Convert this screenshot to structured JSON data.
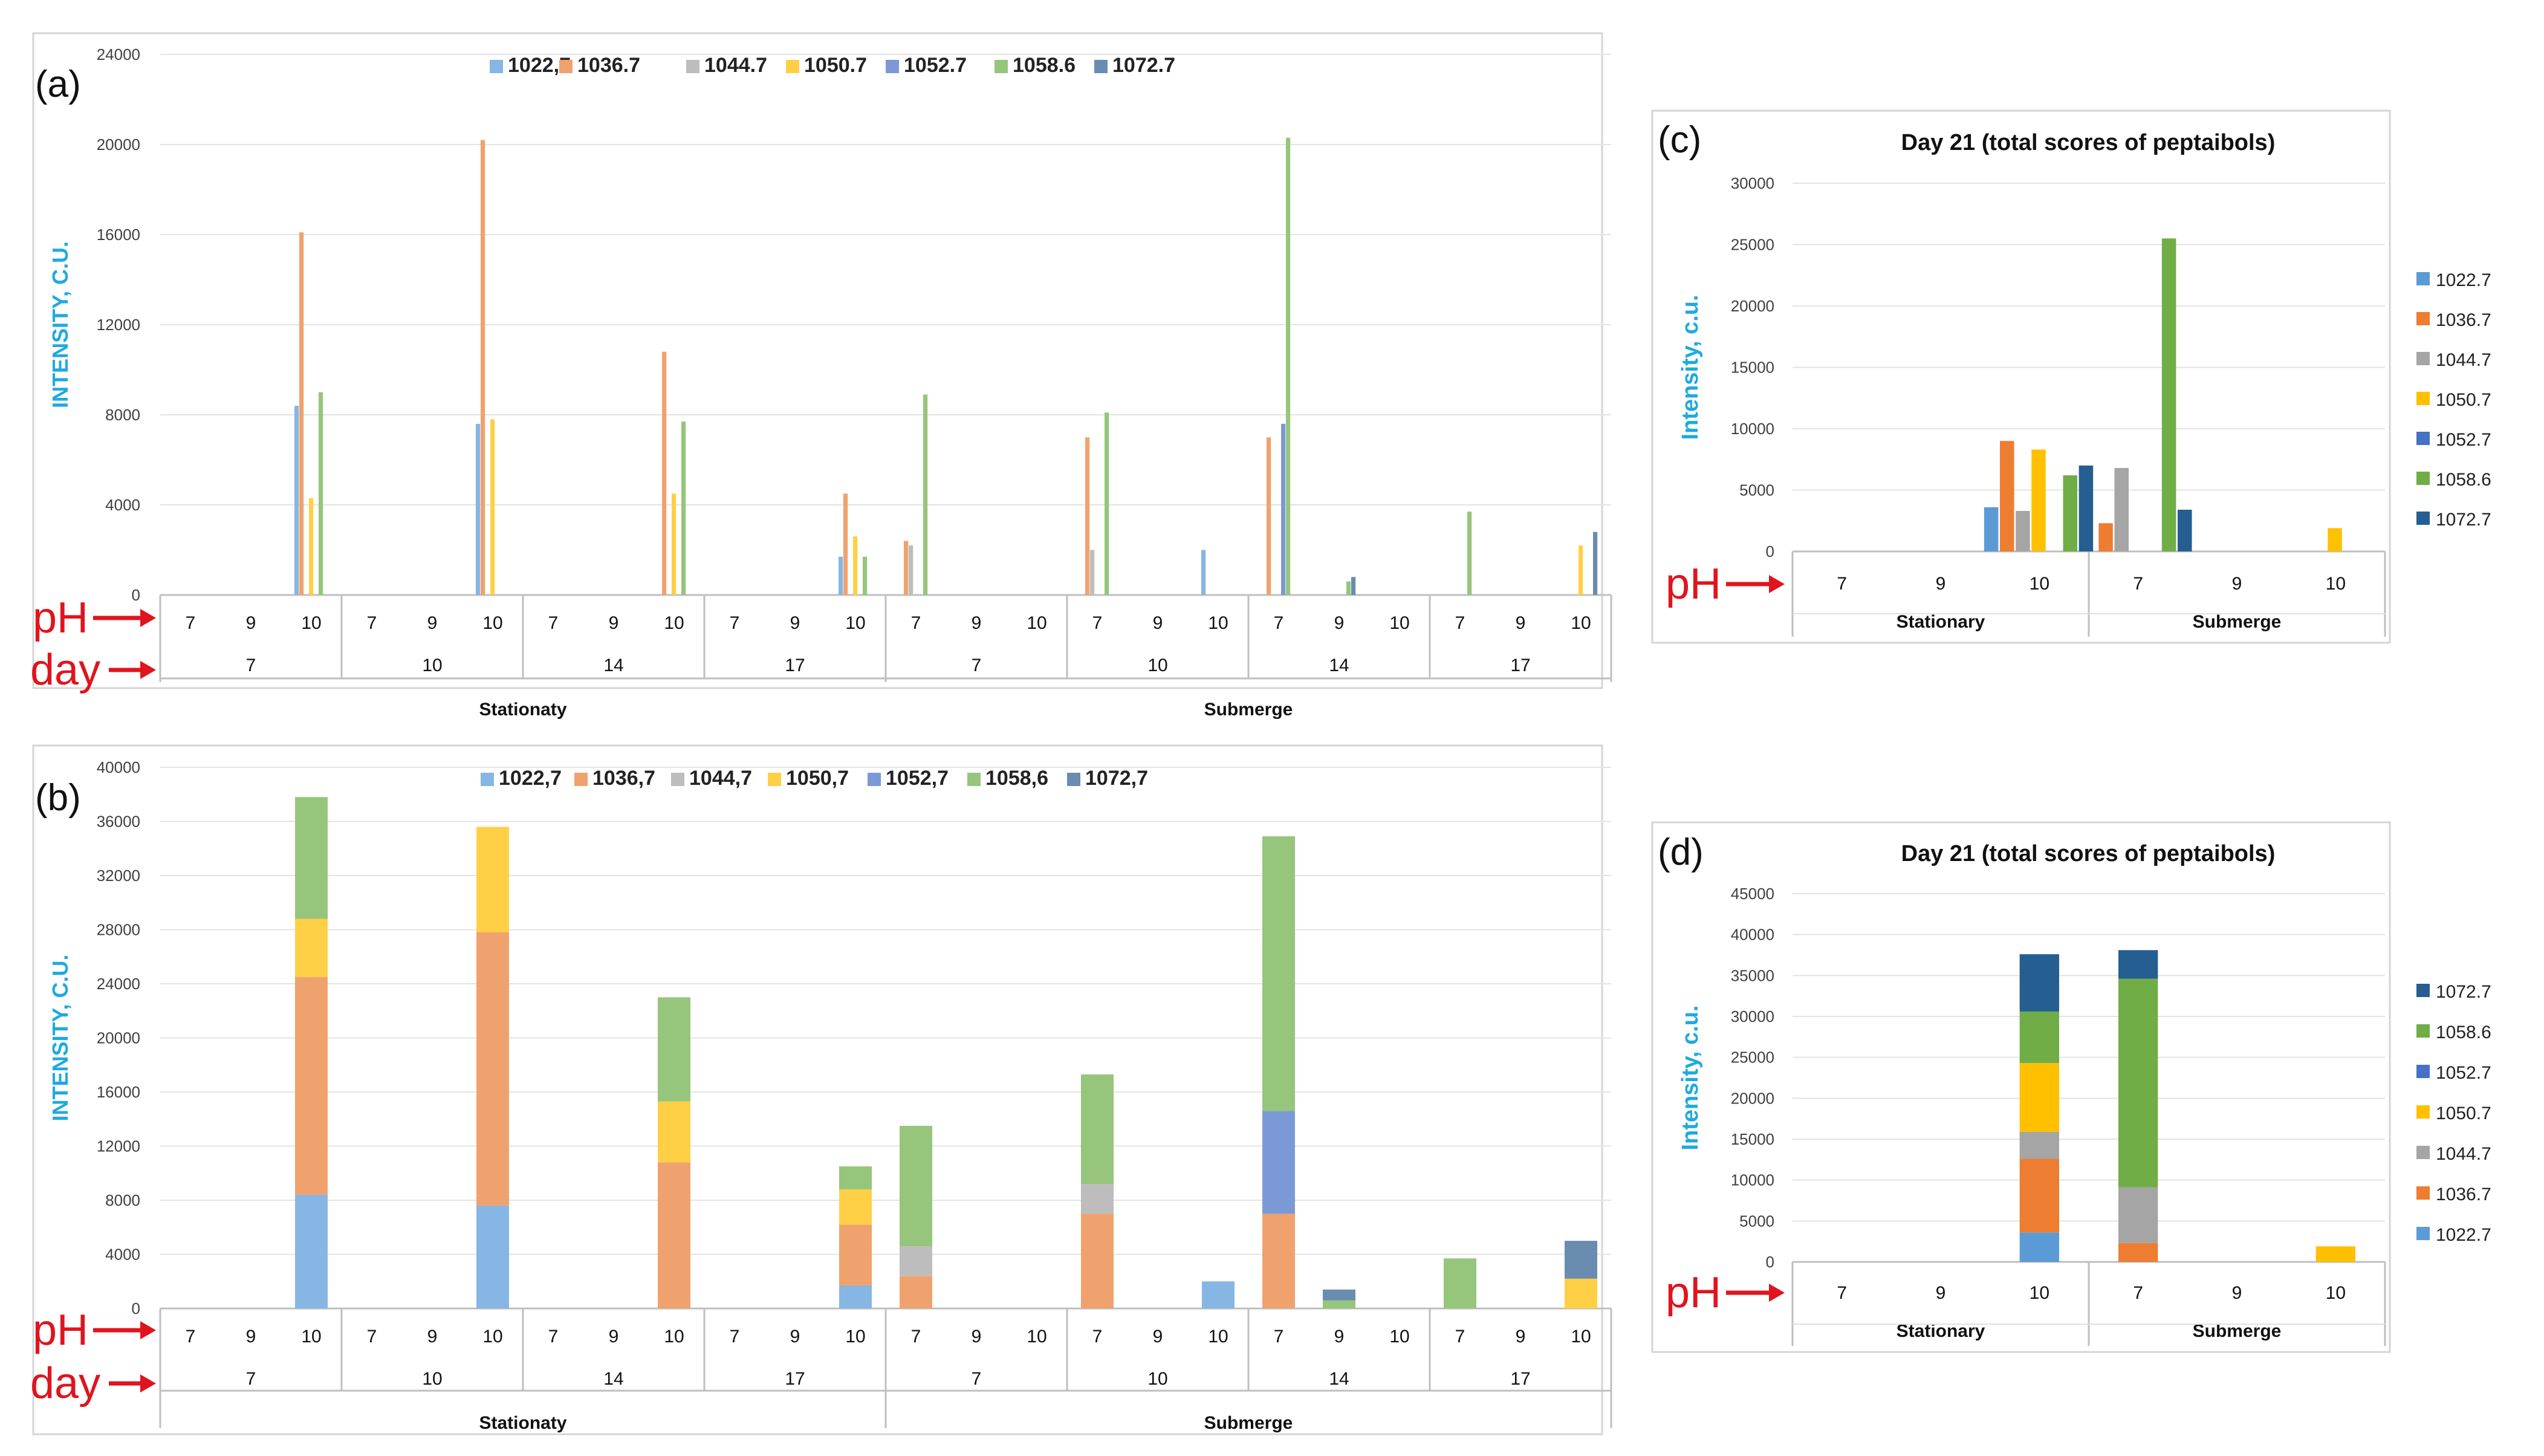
{
  "chart_data": [
    {
      "id": "a",
      "panel_label": "(a)",
      "type": "bar",
      "mode": "grouped",
      "title": "",
      "ylabel": "INTENSITY, C.U.",
      "ylim": [
        0,
        24000
      ],
      "yticks": [
        0,
        4000,
        8000,
        12000,
        16000,
        20000,
        24000
      ],
      "legend_position": "top",
      "arrow_labels": [
        "pH",
        "day"
      ],
      "levels": {
        "ph": [
          "7",
          "9",
          "10",
          "7",
          "9",
          "10",
          "7",
          "9",
          "10",
          "7",
          "9",
          "10",
          "7",
          "9",
          "10",
          "7",
          "9",
          "10",
          "7",
          "9",
          "10",
          "7",
          "9",
          "10"
        ],
        "day": [
          "7",
          "10",
          "14",
          "17",
          "7",
          "10",
          "14",
          "17"
        ],
        "condition": [
          "Stationaty",
          "Submerge"
        ]
      },
      "series": [
        {
          "name": "1022,7",
          "color": "#86b6e3",
          "values": [
            0,
            0,
            8400,
            0,
            0,
            7600,
            0,
            0,
            0,
            0,
            0,
            1700,
            0,
            0,
            0,
            0,
            0,
            2000,
            0,
            0,
            0,
            0,
            0,
            0
          ]
        },
        {
          "name": "1036.7",
          "color": "#f0a26e",
          "values": [
            0,
            0,
            16100,
            0,
            0,
            20200,
            0,
            0,
            10800,
            0,
            0,
            4500,
            2400,
            0,
            0,
            7000,
            0,
            0,
            7000,
            0,
            0,
            0,
            0,
            0
          ]
        },
        {
          "name": "1044.7",
          "color": "#bdbdbd",
          "values": [
            0,
            0,
            0,
            0,
            0,
            0,
            0,
            0,
            0,
            0,
            0,
            0,
            2200,
            0,
            0,
            2000,
            0,
            0,
            0,
            0,
            0,
            0,
            0,
            0
          ]
        },
        {
          "name": "1050.7",
          "color": "#ffd045",
          "values": [
            0,
            0,
            4300,
            0,
            0,
            7800,
            0,
            0,
            4500,
            0,
            0,
            2600,
            0,
            0,
            0,
            0,
            0,
            0,
            0,
            0,
            0,
            0,
            0,
            2200
          ]
        },
        {
          "name": "1052.7",
          "color": "#7a99d6",
          "values": [
            0,
            0,
            0,
            0,
            0,
            0,
            0,
            0,
            0,
            0,
            0,
            0,
            0,
            0,
            0,
            0,
            0,
            0,
            7600,
            0,
            0,
            0,
            0,
            0
          ]
        },
        {
          "name": "1058.6",
          "color": "#96c57c",
          "values": [
            0,
            0,
            9000,
            0,
            0,
            0,
            0,
            0,
            7700,
            0,
            0,
            1700,
            8900,
            0,
            0,
            8100,
            0,
            0,
            20300,
            600,
            0,
            3700,
            0,
            0
          ]
        },
        {
          "name": "1072.7",
          "color": "#6a8cb0",
          "values": [
            0,
            0,
            0,
            0,
            0,
            0,
            0,
            0,
            0,
            0,
            0,
            0,
            0,
            0,
            0,
            0,
            0,
            0,
            0,
            800,
            0,
            0,
            0,
            2800
          ]
        }
      ]
    },
    {
      "id": "b",
      "panel_label": "(b)",
      "type": "bar",
      "mode": "stacked",
      "title": "",
      "ylabel": "INTENSITY, C.U.",
      "ylim": [
        0,
        40000
      ],
      "yticks": [
        0,
        4000,
        8000,
        12000,
        16000,
        20000,
        24000,
        28000,
        32000,
        36000,
        40000
      ],
      "legend_position": "top",
      "arrow_labels": [
        "pH",
        "day"
      ],
      "levels": {
        "ph": [
          "7",
          "9",
          "10",
          "7",
          "9",
          "10",
          "7",
          "9",
          "10",
          "7",
          "9",
          "10",
          "7",
          "9",
          "10",
          "7",
          "9",
          "10",
          "7",
          "9",
          "10",
          "7",
          "9",
          "10"
        ],
        "day": [
          "7",
          "10",
          "14",
          "17",
          "7",
          "10",
          "14",
          "17"
        ],
        "condition": [
          "Stationaty",
          "Submerge"
        ]
      },
      "series": [
        {
          "name": "1022,7",
          "color": "#86b6e3",
          "values": [
            0,
            0,
            8400,
            0,
            0,
            7600,
            0,
            0,
            0,
            0,
            0,
            1700,
            0,
            0,
            0,
            0,
            0,
            2000,
            0,
            0,
            0,
            0,
            0,
            0
          ]
        },
        {
          "name": "1036,7",
          "color": "#f0a26e",
          "values": [
            0,
            0,
            16100,
            0,
            0,
            20200,
            0,
            0,
            10800,
            0,
            0,
            4500,
            2400,
            0,
            0,
            7000,
            0,
            0,
            7000,
            0,
            0,
            0,
            0,
            0
          ]
        },
        {
          "name": "1044,7",
          "color": "#bdbdbd",
          "values": [
            0,
            0,
            0,
            0,
            0,
            0,
            0,
            0,
            0,
            0,
            0,
            0,
            2200,
            0,
            0,
            2200,
            0,
            0,
            0,
            0,
            0,
            0,
            0,
            0
          ]
        },
        {
          "name": "1050,7",
          "color": "#ffd045",
          "values": [
            0,
            0,
            4300,
            0,
            0,
            7800,
            0,
            0,
            4500,
            0,
            0,
            2600,
            0,
            0,
            0,
            0,
            0,
            0,
            0,
            0,
            0,
            0,
            0,
            2200
          ]
        },
        {
          "name": "1052,7",
          "color": "#7a99d6",
          "values": [
            0,
            0,
            0,
            0,
            0,
            0,
            0,
            0,
            0,
            0,
            0,
            0,
            0,
            0,
            0,
            0,
            0,
            0,
            7600,
            0,
            0,
            0,
            0,
            0
          ]
        },
        {
          "name": "1058,6",
          "color": "#96c57c",
          "values": [
            0,
            0,
            9000,
            0,
            0,
            0,
            0,
            0,
            7700,
            0,
            0,
            1700,
            8900,
            0,
            0,
            8100,
            0,
            0,
            20300,
            600,
            0,
            3700,
            0,
            0
          ]
        },
        {
          "name": "1072,7",
          "color": "#6a8cb0",
          "values": [
            0,
            0,
            0,
            0,
            0,
            0,
            0,
            0,
            0,
            0,
            0,
            0,
            0,
            0,
            0,
            0,
            0,
            0,
            0,
            800,
            0,
            0,
            0,
            2800
          ]
        }
      ]
    },
    {
      "id": "c",
      "panel_label": "(c)",
      "type": "bar",
      "mode": "grouped",
      "title": "Day 21 (total scores of peptaibols)",
      "ylabel": "Intensity, c.u.",
      "ylim": [
        0,
        30000
      ],
      "yticks": [
        0,
        5000,
        10000,
        15000,
        20000,
        25000,
        30000
      ],
      "legend_position": "right",
      "arrow_labels": [
        "pH"
      ],
      "levels": {
        "ph": [
          "7",
          "9",
          "10",
          "7",
          "9",
          "10"
        ],
        "condition": [
          "Stationary",
          "Submerge"
        ]
      },
      "series": [
        {
          "name": "1022.7",
          "color": "#5b9bd5",
          "values": [
            0,
            0,
            3600,
            0,
            0,
            0
          ]
        },
        {
          "name": "1036.7",
          "color": "#ed7d31",
          "values": [
            0,
            0,
            9000,
            2300,
            0,
            0
          ]
        },
        {
          "name": "1044.7",
          "color": "#a5a5a5",
          "values": [
            0,
            0,
            3300,
            6800,
            0,
            0
          ]
        },
        {
          "name": "1050.7",
          "color": "#ffc000",
          "values": [
            0,
            0,
            8300,
            0,
            0,
            1900
          ]
        },
        {
          "name": "1052.7",
          "color": "#4472c4",
          "values": [
            0,
            0,
            0,
            0,
            0,
            0
          ]
        },
        {
          "name": "1058.6",
          "color": "#70ad47",
          "values": [
            0,
            0,
            6200,
            25500,
            0,
            0
          ]
        },
        {
          "name": "1072.7",
          "color": "#255e91",
          "values": [
            0,
            0,
            7000,
            3400,
            0,
            0
          ]
        }
      ]
    },
    {
      "id": "d",
      "panel_label": "(d)",
      "type": "bar",
      "mode": "stacked",
      "title": "Day 21 (total scores of peptaibols)",
      "ylabel": "Intensity, c.u.",
      "ylim": [
        0,
        45000
      ],
      "yticks": [
        0,
        5000,
        10000,
        15000,
        20000,
        25000,
        30000,
        35000,
        40000,
        45000
      ],
      "legend_position": "right",
      "legend_reversed": true,
      "arrow_labels": [
        "pH"
      ],
      "levels": {
        "ph": [
          "7",
          "9",
          "10",
          "7",
          "9",
          "10"
        ],
        "condition": [
          "Stationary",
          "Submerge"
        ]
      },
      "series": [
        {
          "name": "1022.7",
          "color": "#5b9bd5",
          "values": [
            0,
            0,
            3600,
            0,
            0,
            0
          ]
        },
        {
          "name": "1036.7",
          "color": "#ed7d31",
          "values": [
            0,
            0,
            9000,
            2300,
            0,
            0
          ]
        },
        {
          "name": "1044.7",
          "color": "#a5a5a5",
          "values": [
            0,
            0,
            3300,
            6800,
            0,
            0
          ]
        },
        {
          "name": "1050.7",
          "color": "#ffc000",
          "values": [
            0,
            0,
            8400,
            0,
            0,
            1900
          ]
        },
        {
          "name": "1052.7",
          "color": "#4472c4",
          "values": [
            0,
            0,
            0,
            0,
            0,
            0
          ]
        },
        {
          "name": "1058.6",
          "color": "#70ad47",
          "values": [
            0,
            0,
            6300,
            25500,
            0,
            0
          ]
        },
        {
          "name": "1072.7",
          "color": "#255e91",
          "values": [
            0,
            0,
            7000,
            3500,
            0,
            0
          ]
        }
      ]
    }
  ]
}
